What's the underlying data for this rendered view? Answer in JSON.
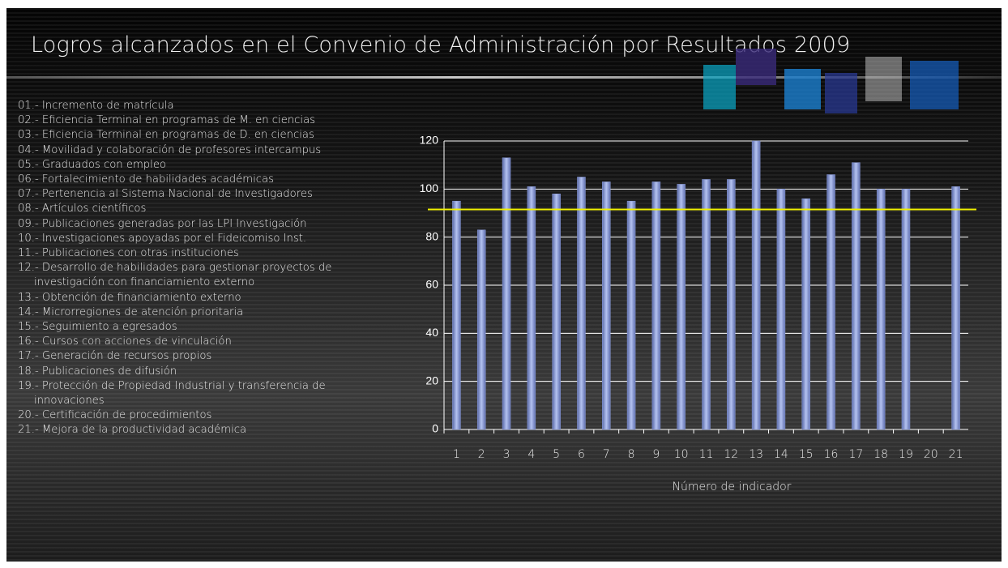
{
  "slide": {
    "title": "Logros alcanzados en el Convenio de Administración por Resultados 2009"
  },
  "indicators": [
    "01.- Incremento de matrícula",
    "02.- Eficiencia Terminal en programas de  M. en ciencias",
    "03.- Eficiencia Terminal  en programas de D. en ciencias",
    "04.- Movilidad y colaboración de profesores intercampus",
    "05.- Graduados con empleo",
    "06.- Fortalecimiento de habilidades académicas",
    "07.- Pertenencia al Sistema Nacional de Investigadores",
    "08.- Artículos científicos",
    "09.- Publicaciones generadas por las LPI Investigación",
    "10.- Investigaciones apoyadas por el Fideicomiso  Inst.",
    "11.- Publicaciones con otras instituciones",
    "12.- Desarrollo de habilidades para gestionar proyectos de investigación con financiamiento externo",
    "13.- Obtención de financiamiento externo",
    "14.- Microrregiones de atención prioritaria",
    "15.- Seguimiento a egresados",
    "16.- Cursos con acciones de vinculación",
    "17.- Generación de recursos propios",
    "18.- Publicaciones de difusión",
    "19.- Protección de Propiedad Industrial y transferencia de innovaciones",
    "20.- Certificación de procedimientos",
    "21.- Mejora de la productividad académica"
  ],
  "chart_data": {
    "type": "bar",
    "x_label": "Número de indicador",
    "categories": [
      "1",
      "2",
      "3",
      "4",
      "5",
      "6",
      "7",
      "8",
      "9",
      "10",
      "11",
      "12",
      "13",
      "14",
      "15",
      "16",
      "17",
      "18",
      "19",
      "20",
      "21"
    ],
    "values": [
      95,
      83,
      113,
      101,
      98,
      105,
      103,
      95,
      103,
      102,
      104,
      104,
      120,
      100,
      96,
      106,
      111,
      100,
      100,
      null,
      101
    ],
    "color": "#8c9ddb",
    "ylim": [
      0,
      120
    ],
    "yticks": [
      0,
      20,
      40,
      60,
      80,
      100,
      120
    ],
    "grid": true,
    "reference_line": {
      "value": 91.5,
      "color": "#f0f000"
    }
  }
}
